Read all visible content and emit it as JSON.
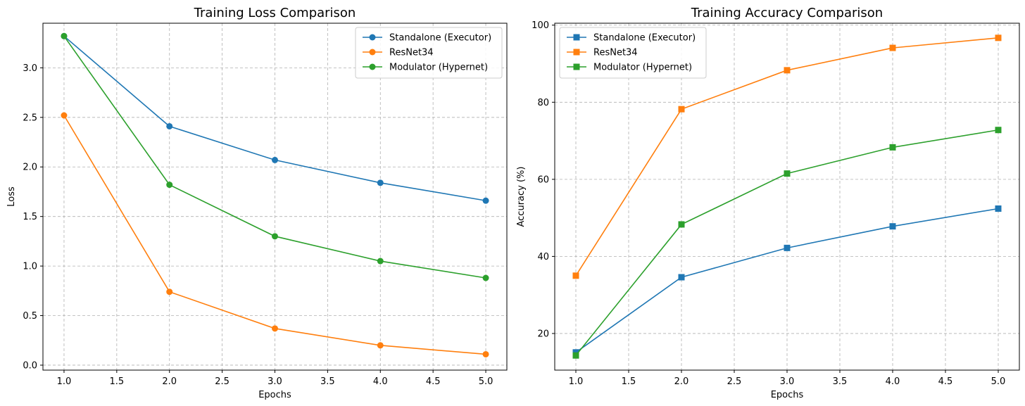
{
  "chart_data": [
    {
      "type": "line",
      "title": "Training Loss Comparison",
      "xlabel": "Epochs",
      "ylabel": "Loss",
      "xlim": [
        0.8,
        5.2
      ],
      "ylim": [
        -0.05,
        3.45
      ],
      "xticks": [
        1.0,
        1.5,
        2.0,
        2.5,
        3.0,
        3.5,
        4.0,
        4.5,
        5.0
      ],
      "xtick_labels": [
        "1.0",
        "1.5",
        "2.0",
        "2.5",
        "3.0",
        "3.5",
        "4.0",
        "4.5",
        "5.0"
      ],
      "yticks": [
        0.0,
        0.5,
        1.0,
        1.5,
        2.0,
        2.5,
        3.0
      ],
      "ytick_labels": [
        "0.0",
        "0.5",
        "1.0",
        "1.5",
        "2.0",
        "2.5",
        "3.0"
      ],
      "grid": true,
      "legend_position": "top-right",
      "marker": "circle",
      "x": [
        1,
        2,
        3,
        4,
        5
      ],
      "series": [
        {
          "name": "Standalone (Executor)",
          "color": "#1f77b4",
          "values": [
            3.32,
            2.41,
            2.07,
            1.84,
            1.66
          ]
        },
        {
          "name": "ResNet34",
          "color": "#ff7f0e",
          "values": [
            2.52,
            0.74,
            0.37,
            0.2,
            0.11
          ]
        },
        {
          "name": "Modulator (Hypernet)",
          "color": "#2ca02c",
          "values": [
            3.32,
            1.82,
            1.3,
            1.05,
            0.88
          ]
        }
      ]
    },
    {
      "type": "line",
      "title": "Training Accuracy Comparison",
      "xlabel": "Epochs",
      "ylabel": "Accuracy (%)",
      "xlim": [
        0.8,
        5.2
      ],
      "ylim": [
        10.5,
        100.5
      ],
      "xticks": [
        1.0,
        1.5,
        2.0,
        2.5,
        3.0,
        3.5,
        4.0,
        4.5,
        5.0
      ],
      "xtick_labels": [
        "1.0",
        "1.5",
        "2.0",
        "2.5",
        "3.0",
        "3.5",
        "4.0",
        "4.5",
        "5.0"
      ],
      "yticks": [
        20,
        40,
        60,
        80,
        100
      ],
      "ytick_labels": [
        "20",
        "40",
        "60",
        "80",
        "100"
      ],
      "grid": true,
      "legend_position": "top-left",
      "marker": "square",
      "x": [
        1,
        2,
        3,
        4,
        5
      ],
      "series": [
        {
          "name": "Standalone (Executor)",
          "color": "#1f77b4",
          "values": [
            15.1,
            34.6,
            42.2,
            47.8,
            52.4
          ]
        },
        {
          "name": "ResNet34",
          "color": "#ff7f0e",
          "values": [
            35.0,
            78.2,
            88.3,
            94.1,
            96.7
          ]
        },
        {
          "name": "Modulator (Hypernet)",
          "color": "#2ca02c",
          "values": [
            14.3,
            48.3,
            61.5,
            68.3,
            72.8
          ]
        }
      ]
    }
  ]
}
